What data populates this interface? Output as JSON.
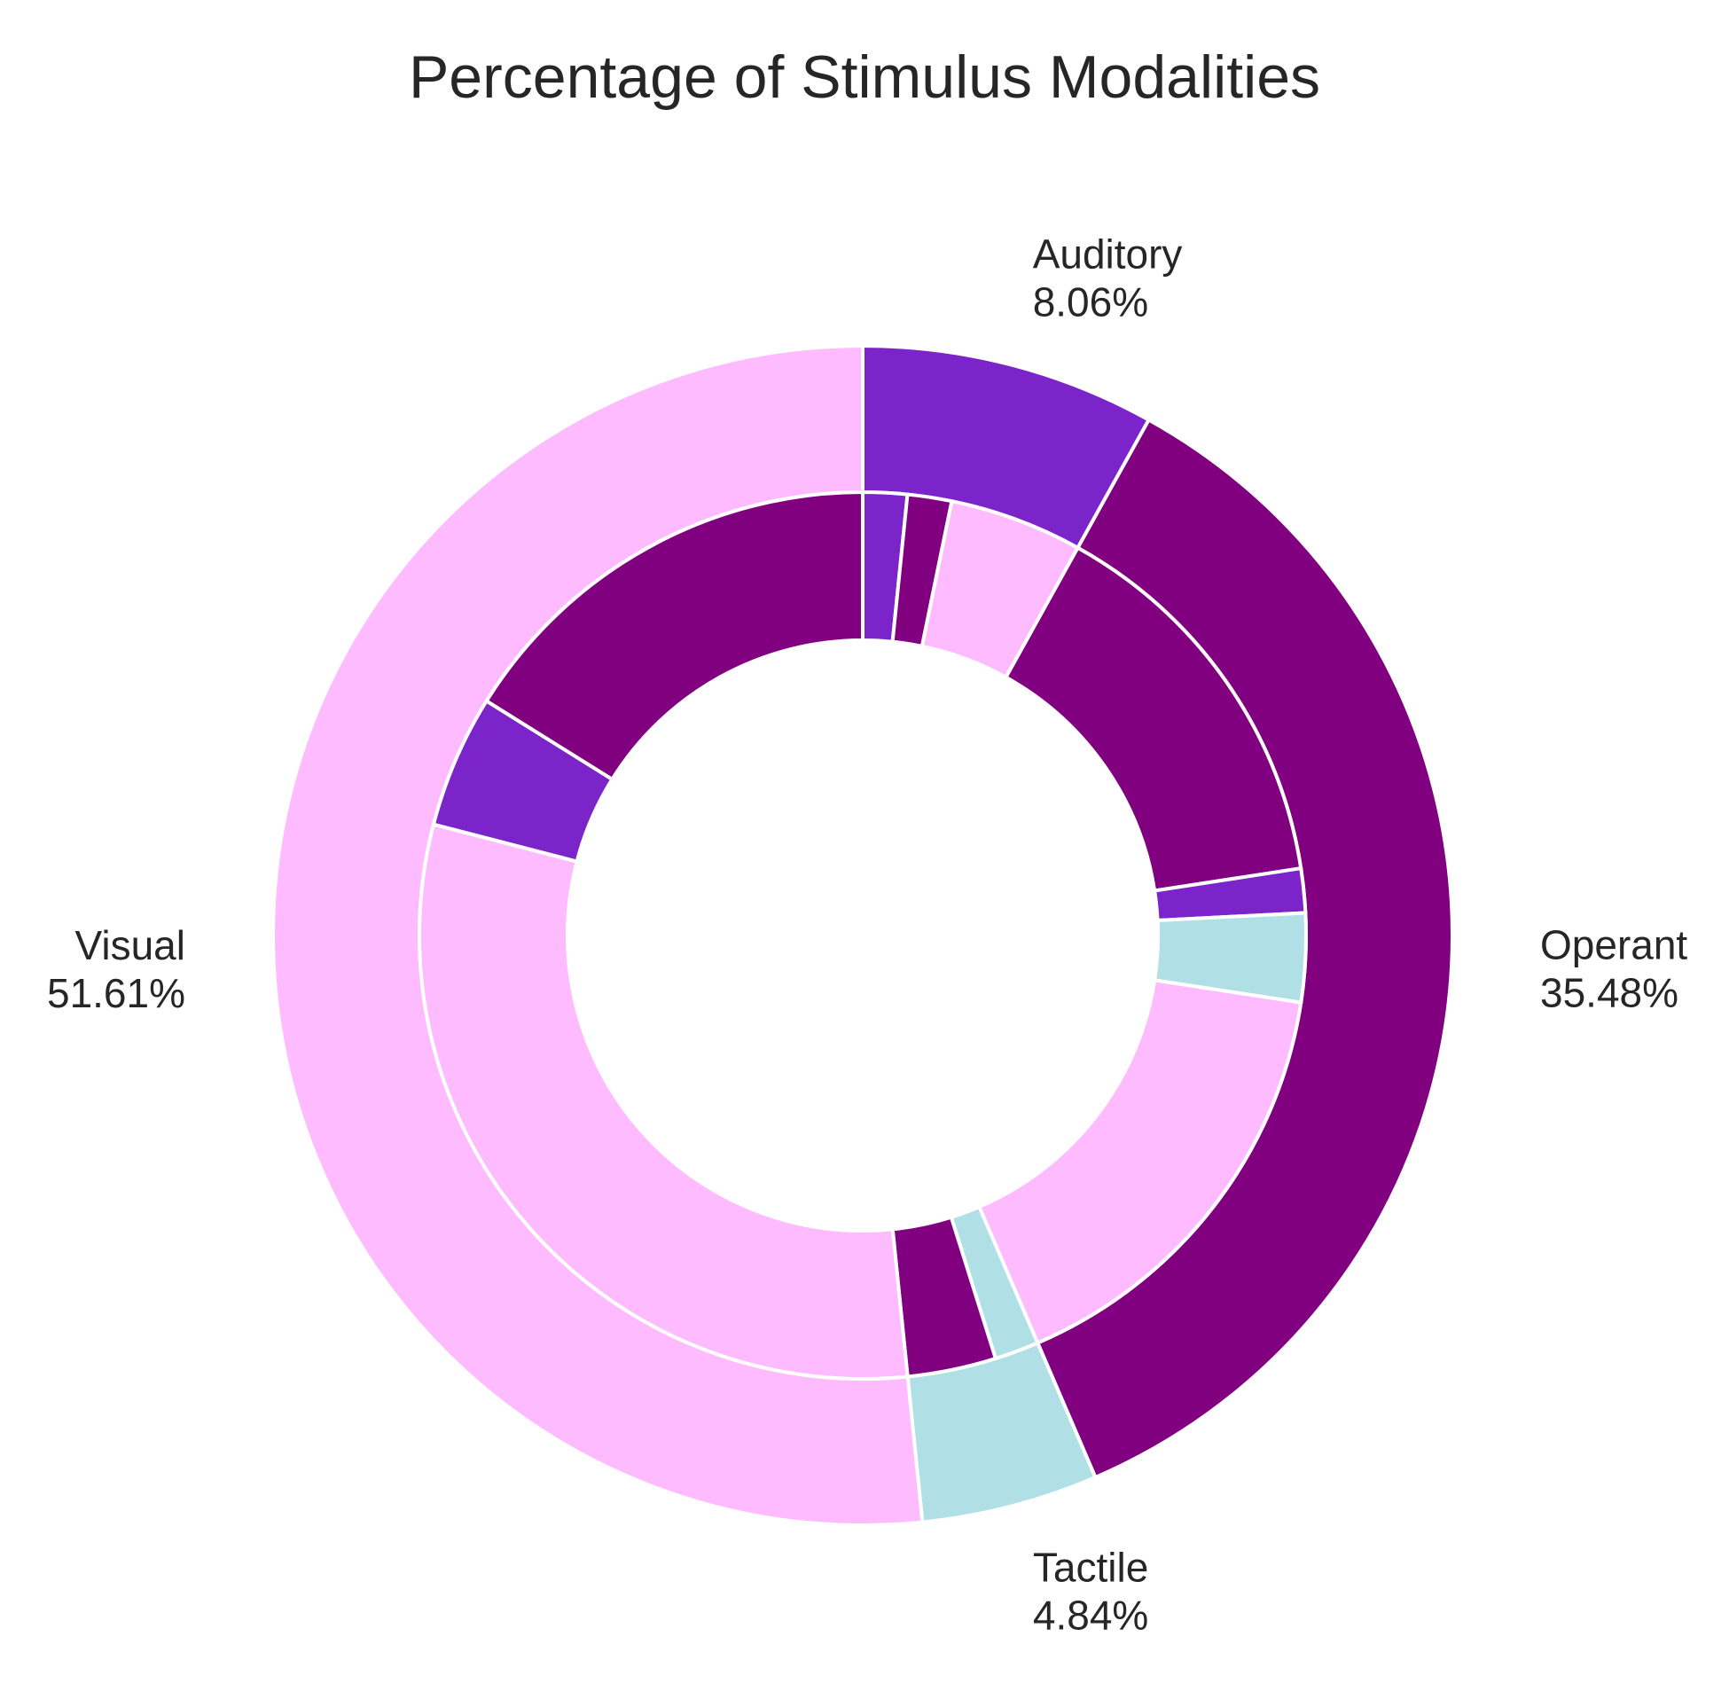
{
  "chart_data": {
    "type": "pie",
    "title": "Percentage of Stimulus Modalities",
    "start_angle_deg": 90,
    "direction": "clockwise",
    "outer_ring": {
      "categories": [
        "Auditory",
        "Operant",
        "Tactile",
        "Visual"
      ],
      "percent_labels": [
        "8.06%",
        "35.48%",
        "4.84%",
        "51.61%"
      ],
      "values": [
        8.06,
        35.48,
        4.84,
        51.61
      ],
      "colors": [
        "#7B24C9",
        "#800080",
        "#B0E0E6",
        "#FFBBFF"
      ]
    },
    "inner_ring": {
      "groups": [
        "Auditory",
        "Auditory",
        "Auditory",
        "Operant",
        "Operant",
        "Operant",
        "Operant",
        "Tactile",
        "Tactile",
        "Visual",
        "Visual",
        "Visual"
      ],
      "values": [
        1.61,
        1.61,
        4.84,
        14.52,
        1.61,
        3.23,
        16.13,
        1.61,
        3.23,
        30.65,
        4.84,
        16.13
      ],
      "colors": [
        "#7B24C9",
        "#800080",
        "#FFBBFF",
        "#800080",
        "#7B24C9",
        "#B0E0E6",
        "#FFBBFF",
        "#B0E0E6",
        "#800080",
        "#FFBBFF",
        "#7B24C9",
        "#800080"
      ]
    }
  }
}
